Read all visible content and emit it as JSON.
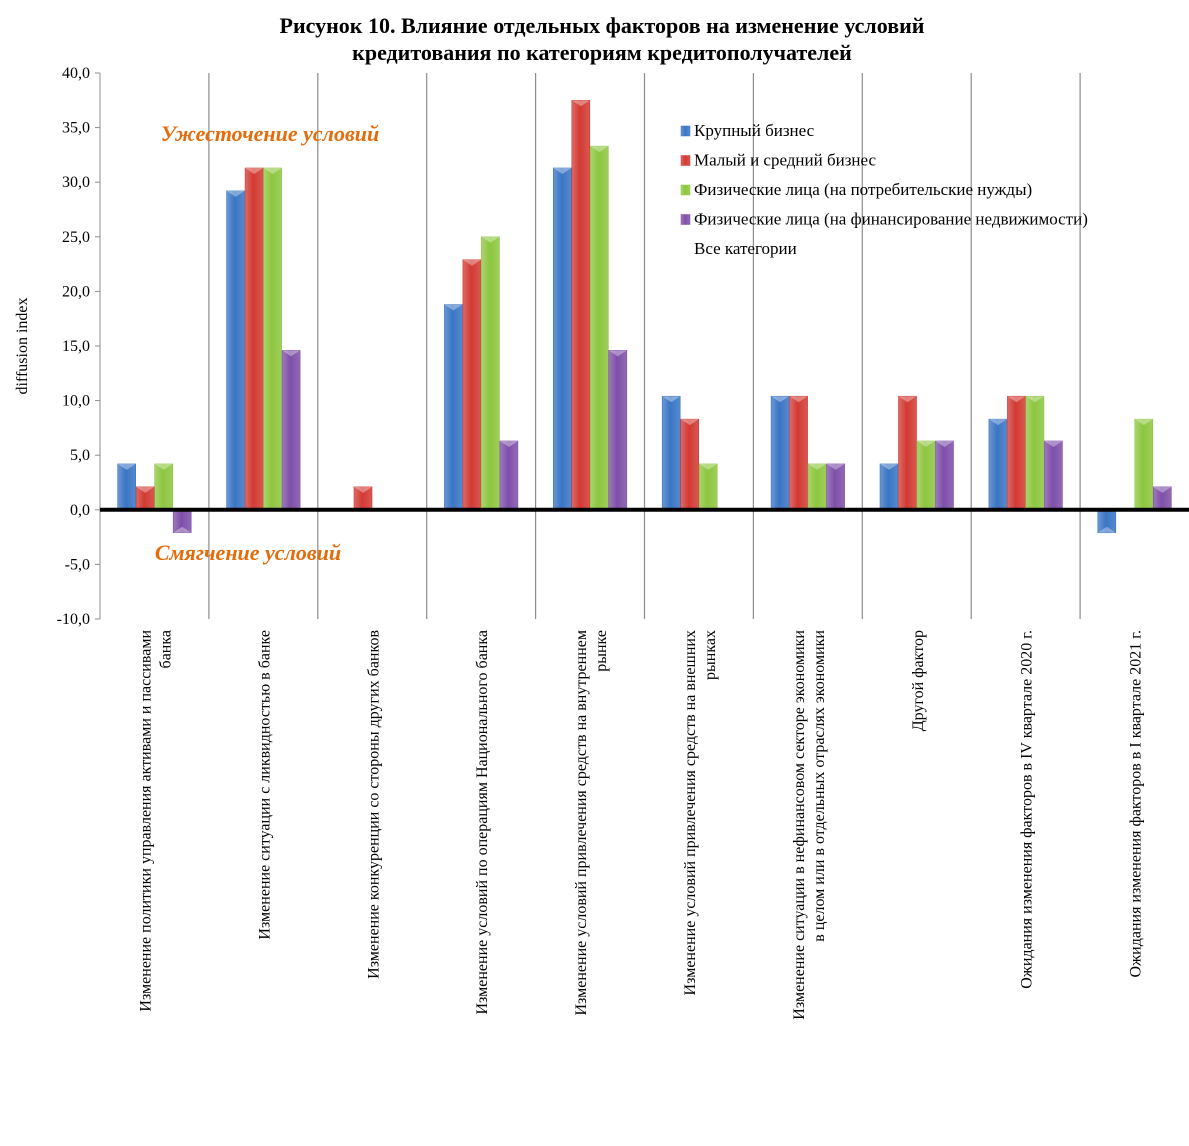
{
  "chart_data": {
    "type": "bar",
    "title": "Рисунок 10. Влияние отдельных факторов на изменение условий кредитования по категориям кредитополучателей",
    "title_lines": [
      "Рисунок 10. Влияние отдельных факторов на изменение условий",
      "кредитования по категориям кредитополучателей"
    ],
    "ylabel": "diffusion index",
    "xlabel": "",
    "ylim": [
      -10,
      40
    ],
    "yticks": [
      "-10,0",
      "-5,0",
      "0,0",
      "5,0",
      "10,0",
      "15,0",
      "20,0",
      "25,0",
      "30,0",
      "35,0",
      "40,0"
    ],
    "grid": "vertical separators between categories",
    "legend_position": "top-right",
    "categories": [
      [
        "Изменение политики управления активами и пассивами",
        "банка"
      ],
      [
        "Изменение ситуации с ликвидностью в банке"
      ],
      [
        "Изменение конкуренции со стороны других банков"
      ],
      [
        "Изменение условий по операциям Национального банка"
      ],
      [
        "Изменение условий привлечения средств на внутреннем",
        "рынке"
      ],
      [
        "Изменение условий привлечения средств на внешних",
        "рынках"
      ],
      [
        "Изменение ситуации в нефинансовом секторе экономики",
        "в целом или в отдельных отраслях экономики"
      ],
      [
        "Другой фактор"
      ],
      [
        "Ожидания изменения факторов в IV  квартале 2020 г."
      ],
      [
        "Ожидания изменения факторов в I квартале 2021 г."
      ]
    ],
    "series": [
      {
        "name": "Крупный бизнес",
        "color": "#3a75c4",
        "values": [
          4.2,
          29.2,
          0,
          18.8,
          31.3,
          10.4,
          10.4,
          4.2,
          8.3,
          -2.1
        ]
      },
      {
        "name": "Малый и средний бизнес",
        "color": "#d23a33",
        "values": [
          2.1,
          31.3,
          2.1,
          22.9,
          37.5,
          8.3,
          10.4,
          10.4,
          10.4,
          0
        ]
      },
      {
        "name": "Физические лица (на потребительские нужды)",
        "color": "#8dc63f",
        "values": [
          4.2,
          31.3,
          0,
          25.0,
          33.3,
          4.2,
          4.2,
          6.3,
          10.4,
          8.3
        ]
      },
      {
        "name": "Физические лица (на финансирование недвижимости)",
        "color": "#7e4fa8",
        "values": [
          -2.1,
          14.6,
          0,
          6.3,
          14.6,
          0,
          4.2,
          6.3,
          6.3,
          2.1
        ]
      }
    ],
    "legend_extra": "Все категории",
    "annotations": {
      "tightening": "Ужесточение условий",
      "easing": "Смягчение условий"
    },
    "annotation_color": "#e46c0a"
  }
}
